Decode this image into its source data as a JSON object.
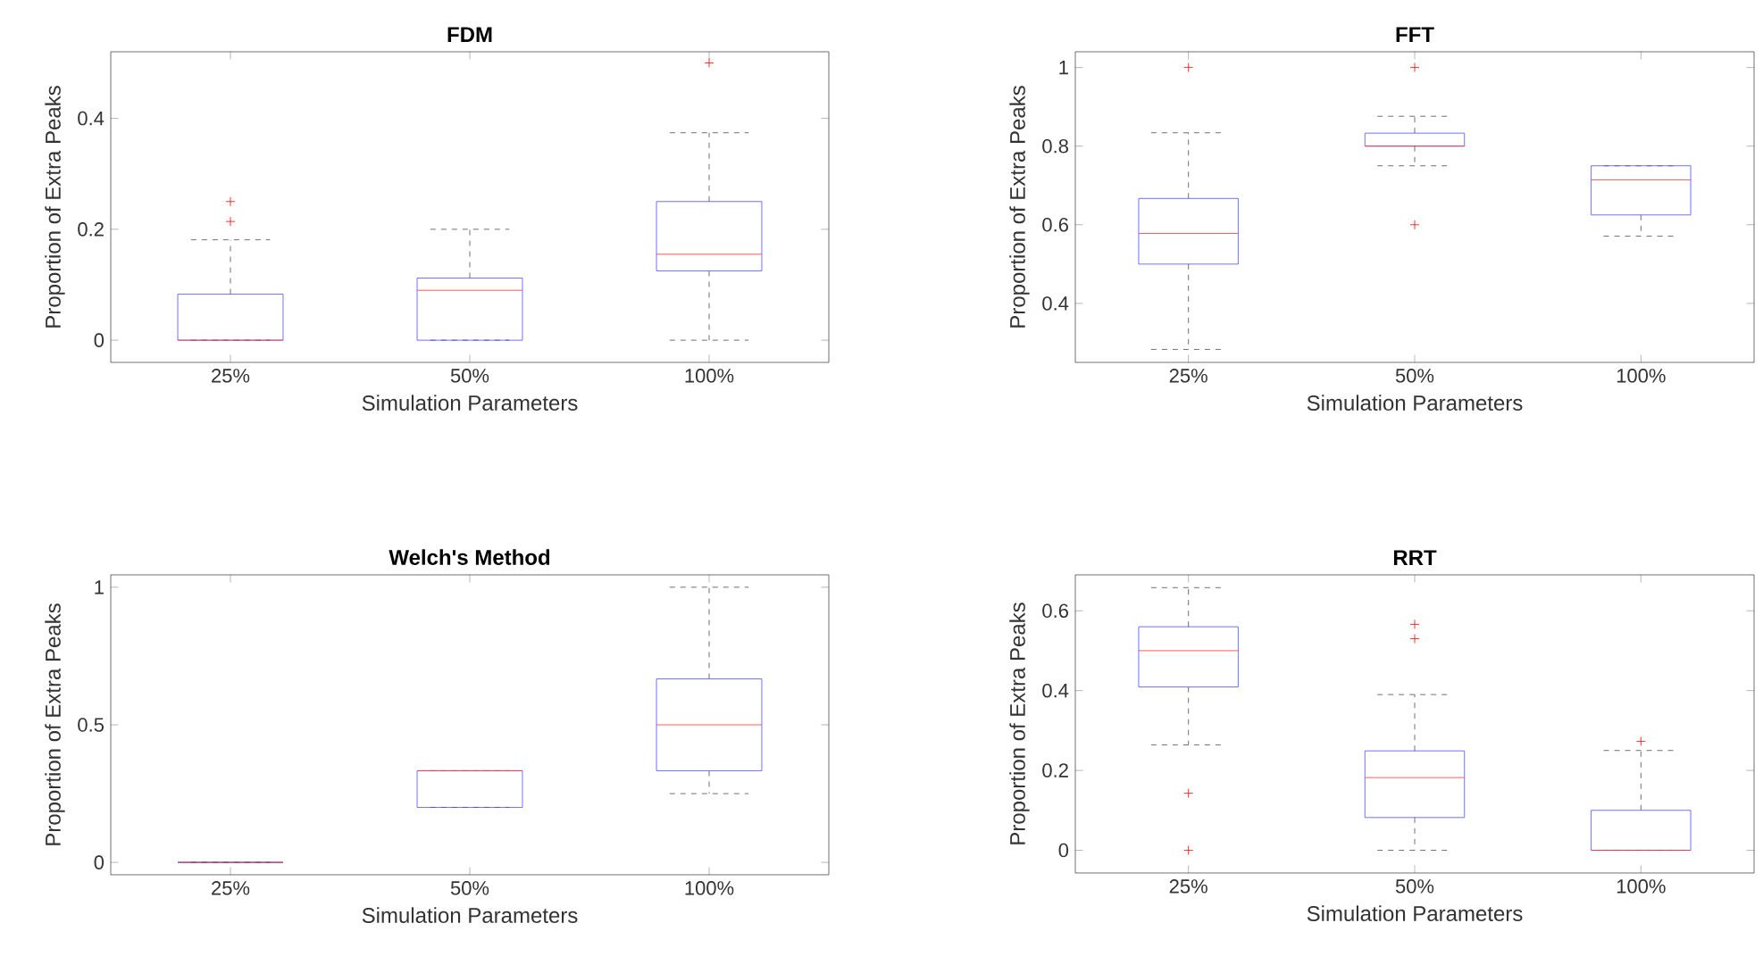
{
  "chart_data": [
    {
      "type": "box",
      "title": "FDM",
      "xlabel": "Simulation Parameters",
      "ylabel": "Proportion of Extra Peaks",
      "categories": [
        "25%",
        "50%",
        "100%"
      ],
      "ylim": [
        -0.04,
        0.52
      ],
      "yticks": [
        0,
        0.2,
        0.4
      ],
      "boxes": [
        {
          "low": 0,
          "q1": 0,
          "median": 0,
          "q3": 0.083,
          "high": 0.181,
          "outliers": [
            0.214,
            0.25
          ]
        },
        {
          "low": 0,
          "q1": 0,
          "median": 0.09,
          "q3": 0.112,
          "high": 0.2
        },
        {
          "low": 0,
          "q1": 0.125,
          "median": 0.155,
          "q3": 0.25,
          "high": 0.374,
          "outliers": [
            0.5
          ]
        }
      ]
    },
    {
      "type": "box",
      "title": "FFT",
      "xlabel": "Simulation Parameters",
      "ylabel": "Proportion of Extra Peaks",
      "categories": [
        "25%",
        "50%",
        "100%"
      ],
      "ylim": [
        0.25,
        1.04
      ],
      "yticks": [
        0.4,
        0.6,
        0.8,
        1
      ],
      "boxes": [
        {
          "low": 0.283,
          "q1": 0.5,
          "median": 0.578,
          "q3": 0.667,
          "high": 0.834,
          "outliers": [
            1
          ]
        },
        {
          "low": 0.75,
          "q1": 0.8,
          "median": 0.8,
          "q3": 0.833,
          "high": 0.876,
          "outliers": [
            1,
            0.6
          ]
        },
        {
          "low": 0.571,
          "q1": 0.625,
          "median": 0.714,
          "q3": 0.75,
          "high": 0.75
        }
      ]
    },
    {
      "type": "box",
      "title": "Welch's Method",
      "xlabel": "Simulation Parameters",
      "ylabel": "Proportion of Extra Peaks",
      "categories": [
        "25%",
        "50%",
        "100%"
      ],
      "ylim": [
        -0.045,
        1.045
      ],
      "yticks": [
        0,
        0.5,
        1
      ],
      "boxes": [
        {
          "low": 0,
          "q1": 0,
          "median": 0,
          "q3": 0,
          "high": 0
        },
        {
          "low": 0.2,
          "q1": 0.2,
          "median": 0.333,
          "q3": 0.333,
          "high": 0.333
        },
        {
          "low": 0.25,
          "q1": 0.333,
          "median": 0.5,
          "q3": 0.667,
          "high": 1
        }
      ]
    },
    {
      "type": "box",
      "title": "RRT",
      "xlabel": "Simulation Parameters",
      "ylabel": "Proportion of Extra Peaks",
      "categories": [
        "25%",
        "50%",
        "100%"
      ],
      "ylim": [
        -0.057,
        0.69
      ],
      "yticks": [
        0,
        0.2,
        0.4,
        0.6
      ],
      "boxes": [
        {
          "low": 0.264,
          "q1": 0.409,
          "median": 0.5,
          "q3": 0.56,
          "high": 0.658,
          "outliers": [
            0.143,
            0
          ]
        },
        {
          "low": 0,
          "q1": 0.082,
          "median": 0.182,
          "q3": 0.249,
          "high": 0.39,
          "outliers": [
            0.566,
            0.53
          ]
        },
        {
          "low": 0,
          "q1": 0,
          "median": 0,
          "q3": 0.1,
          "high": 0.25,
          "outliers": [
            0.273
          ]
        }
      ]
    }
  ]
}
